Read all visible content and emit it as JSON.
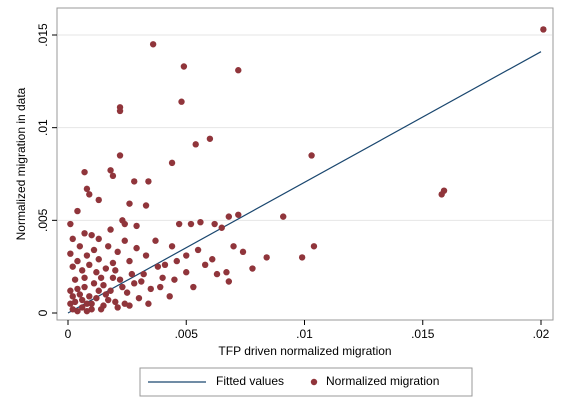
{
  "chart_data": {
    "type": "scatter",
    "x_label": "TFP driven normalized migration",
    "y_label": "Normalized migration in data",
    "xlim": [
      0,
      0.02
    ],
    "ylim": [
      0,
      0.015
    ],
    "xticks": [
      0,
      {
        "value": 0.005,
        "label": ".005"
      },
      {
        "value": 0.01,
        "label": ".01"
      },
      {
        "value": 0.015,
        "label": ".015"
      },
      {
        "value": 0.02,
        "label": ".02"
      }
    ],
    "yticks": [
      0,
      {
        "value": 0.005,
        "label": ".005"
      },
      {
        "value": 0.01,
        "label": ".01"
      },
      {
        "value": 0.015,
        "label": ".015"
      }
    ],
    "grid": true,
    "legend": "bottom",
    "series": [
      {
        "name": "Fitted values",
        "type": "line",
        "color": "#1a476f",
        "x": [
          0,
          0.02
        ],
        "values": [
          0,
          0.0141
        ]
      },
      {
        "name": "Normalized migration",
        "type": "scatter",
        "color": "#90353b",
        "x": [
          0.0201,
          0.0036,
          0.0049,
          0.0072,
          0.0048,
          0.0022,
          0.0022,
          0.006,
          0.0054,
          0.0044,
          0.0022,
          0.0103,
          0.0159,
          0.0158,
          0.0091,
          0.0104,
          0.0099,
          0.0084,
          0.0068,
          0.0072,
          0.0065,
          0.0062,
          0.0056,
          0.0052,
          0.0047,
          0.0034,
          0.0028,
          0.0018,
          0.0019,
          0.0007,
          0.0008,
          0.0009,
          0.0013,
          0.0004,
          0.0001,
          0.0002,
          0.0007,
          0.001,
          0.0013,
          0.0018,
          0.0024,
          0.0029,
          0.0033,
          0.0026,
          0.0023,
          0.0002,
          0.0004,
          0.0006,
          0.0003,
          0.0008,
          0.001,
          0.0012,
          0.0005,
          0.0015,
          0.0018,
          0.002,
          0.0007,
          0.0011,
          0.0014,
          0.0003,
          0.0001,
          0.0016,
          0.0022,
          0.0025,
          0.0028,
          0.003,
          0.0032,
          0.0035,
          0.0038,
          0.004,
          0.0043,
          0.0046,
          0.005,
          0.0053,
          0.0058,
          0.0063,
          0.0068,
          0.0067,
          0.0078,
          0.0055,
          0.005,
          0.0044,
          0.0041,
          0.0037,
          0.0033,
          0.0029,
          0.0026,
          0.0024,
          0.0021,
          0.0019,
          0.0017,
          0.0013,
          0.0011,
          0.0009,
          0.0006,
          0.0004,
          0.0002,
          0.0001,
          0.0005,
          0.0008,
          0.0012,
          0.0015,
          0.0017,
          0.0021,
          0.0024,
          0.0027,
          0.0031,
          0.0009,
          0.0006,
          0.0013,
          0.0019,
          0.0023,
          0.0007,
          0.0004,
          0.0001,
          0.0002,
          0.001,
          0.0014,
          0.0008,
          0.0016,
          0.002,
          0.0026,
          0.0034,
          0.0039,
          0.0045,
          0.0061,
          0.007,
          0.0074
        ],
        "values": [
          0.0153,
          0.0145,
          0.0133,
          0.0131,
          0.0114,
          0.0111,
          0.0109,
          0.0094,
          0.0091,
          0.0081,
          0.0085,
          0.0085,
          0.0066,
          0.0064,
          0.0052,
          0.0036,
          0.003,
          0.003,
          0.0052,
          0.0053,
          0.0046,
          0.0048,
          0.0049,
          0.0048,
          0.0048,
          0.0071,
          0.0071,
          0.0077,
          0.0074,
          0.0076,
          0.0067,
          0.0064,
          0.0061,
          0.0055,
          0.0048,
          0.004,
          0.0043,
          0.0042,
          0.004,
          0.0045,
          0.0048,
          0.0047,
          0.0058,
          0.0059,
          0.005,
          0.0002,
          0.0001,
          0.0003,
          0.0006,
          0.0005,
          0.0002,
          0.0008,
          0.001,
          0.0004,
          0.0012,
          0.0006,
          0.0014,
          0.0016,
          0.0019,
          0.0018,
          0.0012,
          0.0024,
          0.0018,
          0.0011,
          0.0016,
          0.0008,
          0.0021,
          0.0013,
          0.0025,
          0.0019,
          0.0009,
          0.0028,
          0.0022,
          0.0014,
          0.0026,
          0.0021,
          0.0017,
          0.0022,
          0.0024,
          0.0034,
          0.0031,
          0.0036,
          0.0026,
          0.0039,
          0.0031,
          0.0035,
          0.0028,
          0.0039,
          0.0033,
          0.0027,
          0.0036,
          0.0029,
          0.0034,
          0.0026,
          0.0023,
          0.0028,
          0.0025,
          0.0032,
          0.0036,
          0.0031,
          0.0022,
          0.0015,
          0.0007,
          0.0003,
          0.0005,
          0.0021,
          0.0017,
          0.0009,
          0.0007,
          0.0012,
          0.0019,
          0.0014,
          0.0019,
          0.0013,
          0.0005,
          0.0009,
          0.0005,
          0.0002,
          0.0001,
          0.001,
          0.0023,
          0.0004,
          0.0005,
          0.0014,
          0.0018,
          0.0029,
          0.0036,
          0.0033
        ]
      }
    ]
  }
}
